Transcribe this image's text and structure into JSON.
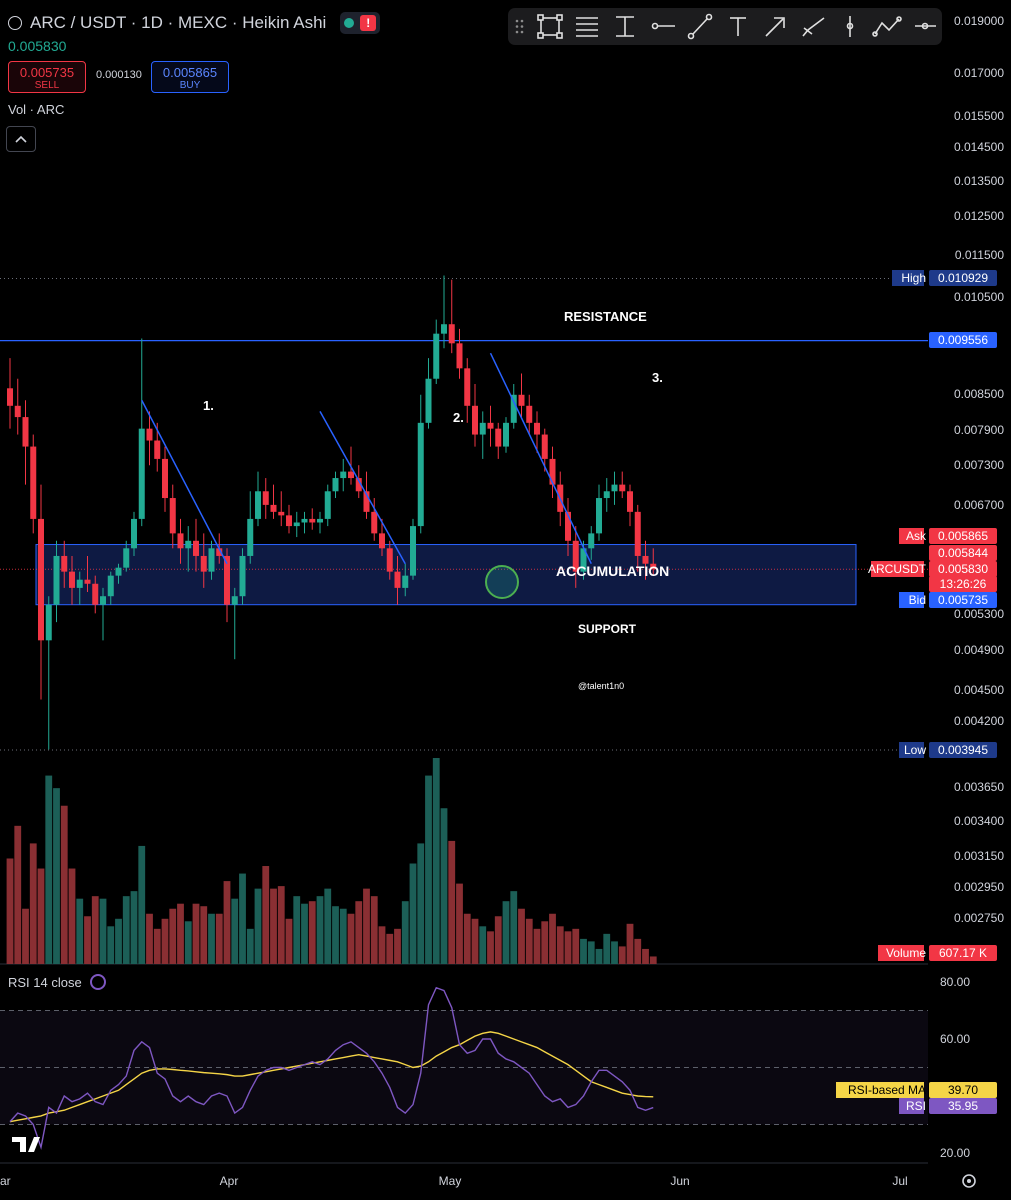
{
  "header": {
    "title": "ARC / USDT · 1D · MEXC · Heikin Ashi",
    "last_price": "0.005830",
    "sell_price": "0.005735",
    "sell_label": "SELL",
    "spread": "0.000130",
    "buy_price": "0.005865",
    "buy_label": "BUY",
    "volume_indicator": "Vol · ARC"
  },
  "toolbar": {
    "icons": [
      "drag-handle-icon",
      "rectangle-icon",
      "fib-retracement-icon",
      "date-range-icon",
      "horizontal-ray-icon",
      "trend-line-icon",
      "text-icon",
      "arrow-icon",
      "brush-icon",
      "vertical-line-icon",
      "path-icon",
      "horizontal-line-icon"
    ]
  },
  "chart_data": {
    "type": "candlestick",
    "style": "Heikin Ashi",
    "price_axis": {
      "ticks": [
        "0.019000",
        "0.017000",
        "0.015500",
        "0.014500",
        "0.013500",
        "0.012500",
        "0.011500",
        "0.010500",
        "0.008500",
        "0.007900",
        "0.007300",
        "0.006700",
        "0.005300",
        "0.004900",
        "0.004500",
        "0.004200"
      ],
      "scale": "log"
    },
    "time_axis": {
      "labels": [
        "ar",
        "Apr",
        "May",
        "Jun",
        "Jul"
      ]
    },
    "candles": [
      [
        0.00862,
        0.0092,
        0.0079,
        0.0083
      ],
      [
        0.0083,
        0.0088,
        0.0078,
        0.0081
      ],
      [
        0.0081,
        0.0084,
        0.007,
        0.0076
      ],
      [
        0.0076,
        0.0078,
        0.0063,
        0.0065
      ],
      [
        0.0065,
        0.007,
        0.0044,
        0.005
      ],
      [
        0.005,
        0.0055,
        0.00395,
        0.0054
      ],
      [
        0.0054,
        0.0062,
        0.0052,
        0.006
      ],
      [
        0.006,
        0.0062,
        0.0056,
        0.0058
      ],
      [
        0.0058,
        0.006,
        0.0054,
        0.0056
      ],
      [
        0.0056,
        0.0058,
        0.0054,
        0.0057
      ],
      [
        0.0057,
        0.006,
        0.00555,
        0.00565
      ],
      [
        0.00565,
        0.00575,
        0.0053,
        0.0054
      ],
      [
        0.0054,
        0.0056,
        0.005,
        0.0055
      ],
      [
        0.0055,
        0.0058,
        0.0054,
        0.00575
      ],
      [
        0.00575,
        0.0059,
        0.00565,
        0.00585
      ],
      [
        0.00585,
        0.0062,
        0.0058,
        0.0061
      ],
      [
        0.0061,
        0.0066,
        0.006,
        0.0065
      ],
      [
        0.0065,
        0.0096,
        0.0064,
        0.0079
      ],
      [
        0.0079,
        0.0082,
        0.0073,
        0.0077
      ],
      [
        0.0077,
        0.008,
        0.0072,
        0.0074
      ],
      [
        0.0074,
        0.0076,
        0.0066,
        0.0068
      ],
      [
        0.0068,
        0.007,
        0.0061,
        0.0063
      ],
      [
        0.0063,
        0.0065,
        0.0059,
        0.0061
      ],
      [
        0.0061,
        0.0064,
        0.0058,
        0.0062
      ],
      [
        0.0062,
        0.0065,
        0.0058,
        0.006
      ],
      [
        0.006,
        0.0063,
        0.0056,
        0.0058
      ],
      [
        0.0058,
        0.0062,
        0.0057,
        0.0061
      ],
      [
        0.0061,
        0.0063,
        0.0059,
        0.006
      ],
      [
        0.006,
        0.0061,
        0.0052,
        0.0054
      ],
      [
        0.0054,
        0.0056,
        0.0048,
        0.0055
      ],
      [
        0.0055,
        0.0061,
        0.0054,
        0.006
      ],
      [
        0.006,
        0.0069,
        0.0059,
        0.0065
      ],
      [
        0.0065,
        0.0072,
        0.0064,
        0.0069
      ],
      [
        0.0069,
        0.0071,
        0.0065,
        0.0067
      ],
      [
        0.0067,
        0.007,
        0.0065,
        0.0066
      ],
      [
        0.0066,
        0.0069,
        0.0064,
        0.00655
      ],
      [
        0.00655,
        0.0067,
        0.0063,
        0.0064
      ],
      [
        0.0064,
        0.0066,
        0.00625,
        0.00645
      ],
      [
        0.00645,
        0.0066,
        0.0063,
        0.0065
      ],
      [
        0.0065,
        0.00665,
        0.00635,
        0.00645
      ],
      [
        0.00645,
        0.0066,
        0.0063,
        0.0065
      ],
      [
        0.0065,
        0.007,
        0.0064,
        0.0069
      ],
      [
        0.0069,
        0.0072,
        0.0068,
        0.0071
      ],
      [
        0.0071,
        0.0074,
        0.0069,
        0.0072
      ],
      [
        0.0072,
        0.0076,
        0.007,
        0.0071
      ],
      [
        0.0071,
        0.0073,
        0.0068,
        0.0069
      ],
      [
        0.0069,
        0.0072,
        0.0065,
        0.0066
      ],
      [
        0.0066,
        0.0068,
        0.0062,
        0.0063
      ],
      [
        0.0063,
        0.0065,
        0.006,
        0.0061
      ],
      [
        0.0061,
        0.0062,
        0.0057,
        0.0058
      ],
      [
        0.0058,
        0.006,
        0.0054,
        0.0056
      ],
      [
        0.0056,
        0.0059,
        0.0055,
        0.00575
      ],
      [
        0.00575,
        0.0065,
        0.0057,
        0.0064
      ],
      [
        0.0064,
        0.0085,
        0.0063,
        0.008
      ],
      [
        0.008,
        0.0092,
        0.0079,
        0.0088
      ],
      [
        0.0088,
        0.01,
        0.0087,
        0.0097
      ],
      [
        0.0097,
        0.011,
        0.0094,
        0.0099
      ],
      [
        0.0099,
        0.0109,
        0.0093,
        0.0095
      ],
      [
        0.0095,
        0.0098,
        0.0088,
        0.009
      ],
      [
        0.009,
        0.0092,
        0.008,
        0.0083
      ],
      [
        0.0083,
        0.0087,
        0.0076,
        0.0078
      ],
      [
        0.0078,
        0.0082,
        0.0074,
        0.008
      ],
      [
        0.008,
        0.0083,
        0.0076,
        0.0079
      ],
      [
        0.0079,
        0.008,
        0.0074,
        0.0076
      ],
      [
        0.0076,
        0.0081,
        0.0075,
        0.008
      ],
      [
        0.008,
        0.0087,
        0.0079,
        0.0085
      ],
      [
        0.0085,
        0.0089,
        0.0081,
        0.0083
      ],
      [
        0.0083,
        0.0085,
        0.0078,
        0.008
      ],
      [
        0.008,
        0.0082,
        0.0075,
        0.0078
      ],
      [
        0.0078,
        0.0079,
        0.0072,
        0.0074
      ],
      [
        0.0074,
        0.0076,
        0.0068,
        0.007
      ],
      [
        0.007,
        0.0072,
        0.0064,
        0.0066
      ],
      [
        0.0066,
        0.0068,
        0.006,
        0.0062
      ],
      [
        0.0062,
        0.0064,
        0.0056,
        0.0058
      ],
      [
        0.0058,
        0.0062,
        0.0057,
        0.0061
      ],
      [
        0.0061,
        0.0064,
        0.00595,
        0.0063
      ],
      [
        0.0063,
        0.007,
        0.0062,
        0.0068
      ],
      [
        0.0068,
        0.0071,
        0.0066,
        0.0069
      ],
      [
        0.0069,
        0.0072,
        0.0067,
        0.007
      ],
      [
        0.007,
        0.0072,
        0.0068,
        0.0069
      ],
      [
        0.0069,
        0.007,
        0.0064,
        0.0066
      ],
      [
        0.0066,
        0.0067,
        0.0058,
        0.006
      ],
      [
        0.006,
        0.0062,
        0.0057,
        0.0059
      ],
      [
        0.0059,
        0.0061,
        0.00575,
        0.00583
      ]
    ],
    "volume": [
      42,
      55,
      22,
      48,
      38,
      75,
      70,
      63,
      38,
      26,
      19,
      27,
      26,
      15,
      18,
      27,
      29,
      47,
      20,
      14,
      18,
      22,
      24,
      17,
      24,
      23,
      20,
      20,
      33,
      26,
      36,
      14,
      30,
      39,
      30,
      31,
      18,
      27,
      24,
      25,
      27,
      30,
      23,
      22,
      20,
      25,
      30,
      27,
      15,
      12,
      14,
      25,
      40,
      48,
      75,
      82,
      62,
      49,
      32,
      20,
      18,
      15,
      13,
      19,
      25,
      29,
      22,
      18,
      14,
      17,
      20,
      15,
      13,
      14,
      10,
      9,
      6,
      12,
      9,
      7,
      16,
      10,
      6,
      3
    ],
    "rsi": [
      31,
      34,
      33,
      30,
      22,
      36,
      34,
      40,
      38,
      39,
      41,
      38,
      37,
      42,
      44,
      47,
      56,
      59,
      57,
      48,
      46,
      40,
      38,
      40,
      38,
      37,
      40,
      41,
      40,
      34,
      36,
      42,
      47,
      49,
      50,
      50,
      49,
      50,
      51,
      52,
      51,
      53,
      56,
      58,
      59,
      57,
      55,
      52,
      48,
      43,
      36,
      34,
      37,
      48,
      72,
      78,
      77,
      71,
      58,
      55,
      56,
      60,
      60,
      55,
      53,
      52,
      50,
      48,
      44,
      40,
      38,
      39,
      36,
      37,
      40,
      45,
      49,
      49,
      47,
      45,
      42,
      36,
      35,
      35.95
    ],
    "rsi_ma": [
      31,
      31.5,
      32,
      32.5,
      33,
      34,
      34.5,
      35,
      36,
      37,
      38,
      39,
      40,
      41,
      42,
      44,
      46,
      48,
      49,
      49.5,
      49.5,
      49.3,
      49,
      48.8,
      48.5,
      48.2,
      48,
      47.8,
      47.5,
      47,
      47,
      47.5,
      48,
      48.5,
      49,
      49.5,
      50,
      50.5,
      51,
      51.5,
      52,
      52.5,
      53,
      53.5,
      54,
      54.5,
      54,
      53.5,
      53,
      52.5,
      52,
      51,
      50,
      50.5,
      52,
      54,
      55.5,
      57,
      58,
      59.5,
      61,
      62,
      62.5,
      62,
      61,
      60,
      59,
      58,
      57,
      55.5,
      54,
      52.5,
      51,
      49,
      47,
      45,
      44,
      43,
      42,
      41,
      40.5,
      40,
      39.8,
      39.7
    ],
    "rsi_axis": {
      "ticks": [
        "80.00",
        "60.00",
        "20.00"
      ],
      "bands": [
        70,
        50,
        30
      ]
    },
    "levels": {
      "high_label": "High",
      "high": "0.010929",
      "resistance_price": "0.009556",
      "ask_label": "Ask",
      "ask": "0.005865",
      "mid1": "0.005844",
      "symbol_label": "ARCUSDT",
      "last": "0.005830",
      "countdown": "13:26:26",
      "bid_label": "Bid",
      "bid": "0.005735",
      "low_label": "Low",
      "low": "0.003945",
      "volume_label": "Volume",
      "volume_value": "607.17 K",
      "rsi_ma_label": "RSI-based MA",
      "rsi_ma_value": "39.70",
      "rsi_label": "RSI",
      "rsi_value": "35.95"
    },
    "zones": {
      "accumulation_top": 0.00615,
      "accumulation_bottom": 0.0054,
      "resistance": 0.009556
    },
    "annotations": {
      "resistance": "RESISTANCE",
      "accumulation": "ACCUMULATION",
      "support": "SUPPORT",
      "watermark": "@talent1n0",
      "n1": "1.",
      "n2": "2.",
      "n3": "3."
    },
    "trendlines": [
      {
        "from": [
          17,
          0.0084
        ],
        "to": [
          28,
          0.0059
        ]
      },
      {
        "from": [
          40,
          0.0082
        ],
        "to": [
          51,
          0.0059
        ]
      },
      {
        "from": [
          62,
          0.0093
        ],
        "to": [
          75,
          0.0059
        ]
      }
    ],
    "colors": {
      "up": "#22ab94",
      "down": "#f23645",
      "vol_up": "#1c5f57",
      "vol_down": "#8a2f33",
      "rsi": "#7e57c2",
      "rsi_ma": "#f5d547",
      "line": "#2962ff",
      "zone": "#1a2f7a"
    }
  },
  "rsi_header": {
    "label": "RSI 14 close"
  }
}
